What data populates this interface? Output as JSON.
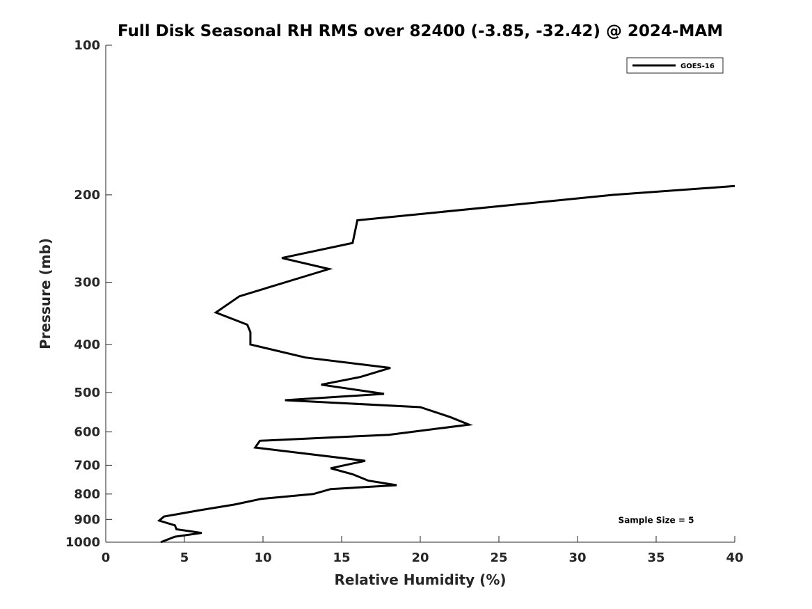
{
  "chart_data": {
    "type": "line",
    "title": "Full Disk Seasonal RH RMS over 82400 (-3.85, -32.42) @ 2024-MAM",
    "xlabel": "Relative Humidity (%)",
    "ylabel": "Pressure (mb)",
    "xlim": [
      0,
      40
    ],
    "ylim": [
      100,
      1000
    ],
    "y_scale": "log",
    "y_reversed": true,
    "x_ticks": [
      "0",
      "5",
      "10",
      "15",
      "20",
      "25",
      "30",
      "35",
      "40"
    ],
    "y_ticks": [
      "100",
      "200",
      "300",
      "400",
      "500",
      "600",
      "700",
      "800",
      "900",
      "1000"
    ],
    "grid": false,
    "legend_position": "top-right",
    "annotation": "Sample Size = 5",
    "series": [
      {
        "name": "GOES-16",
        "color": "#000000",
        "points": [
          {
            "x": 40.0,
            "y": 192
          },
          {
            "x": 32.3,
            "y": 200
          },
          {
            "x": 16.0,
            "y": 225
          },
          {
            "x": 15.7,
            "y": 250
          },
          {
            "x": 11.2,
            "y": 268
          },
          {
            "x": 14.2,
            "y": 282
          },
          {
            "x": 8.5,
            "y": 320
          },
          {
            "x": 7.0,
            "y": 345
          },
          {
            "x": 9.0,
            "y": 365
          },
          {
            "x": 9.2,
            "y": 378
          },
          {
            "x": 9.2,
            "y": 400
          },
          {
            "x": 12.7,
            "y": 425
          },
          {
            "x": 18.1,
            "y": 446
          },
          {
            "x": 16.2,
            "y": 465
          },
          {
            "x": 13.7,
            "y": 482
          },
          {
            "x": 17.7,
            "y": 503
          },
          {
            "x": 11.4,
            "y": 518
          },
          {
            "x": 20.0,
            "y": 535
          },
          {
            "x": 21.9,
            "y": 560
          },
          {
            "x": 23.1,
            "y": 580
          },
          {
            "x": 18.0,
            "y": 608
          },
          {
            "x": 9.8,
            "y": 625
          },
          {
            "x": 9.5,
            "y": 645
          },
          {
            "x": 16.5,
            "y": 686
          },
          {
            "x": 14.3,
            "y": 710
          },
          {
            "x": 15.7,
            "y": 730
          },
          {
            "x": 16.7,
            "y": 752
          },
          {
            "x": 18.5,
            "y": 768
          },
          {
            "x": 14.3,
            "y": 782
          },
          {
            "x": 13.2,
            "y": 800
          },
          {
            "x": 9.9,
            "y": 818
          },
          {
            "x": 8.2,
            "y": 840
          },
          {
            "x": 6.0,
            "y": 862
          },
          {
            "x": 3.7,
            "y": 888
          },
          {
            "x": 3.4,
            "y": 905
          },
          {
            "x": 4.4,
            "y": 925
          },
          {
            "x": 4.5,
            "y": 942
          },
          {
            "x": 6.1,
            "y": 958
          },
          {
            "x": 4.4,
            "y": 975
          },
          {
            "x": 3.5,
            "y": 1000
          }
        ]
      }
    ]
  }
}
